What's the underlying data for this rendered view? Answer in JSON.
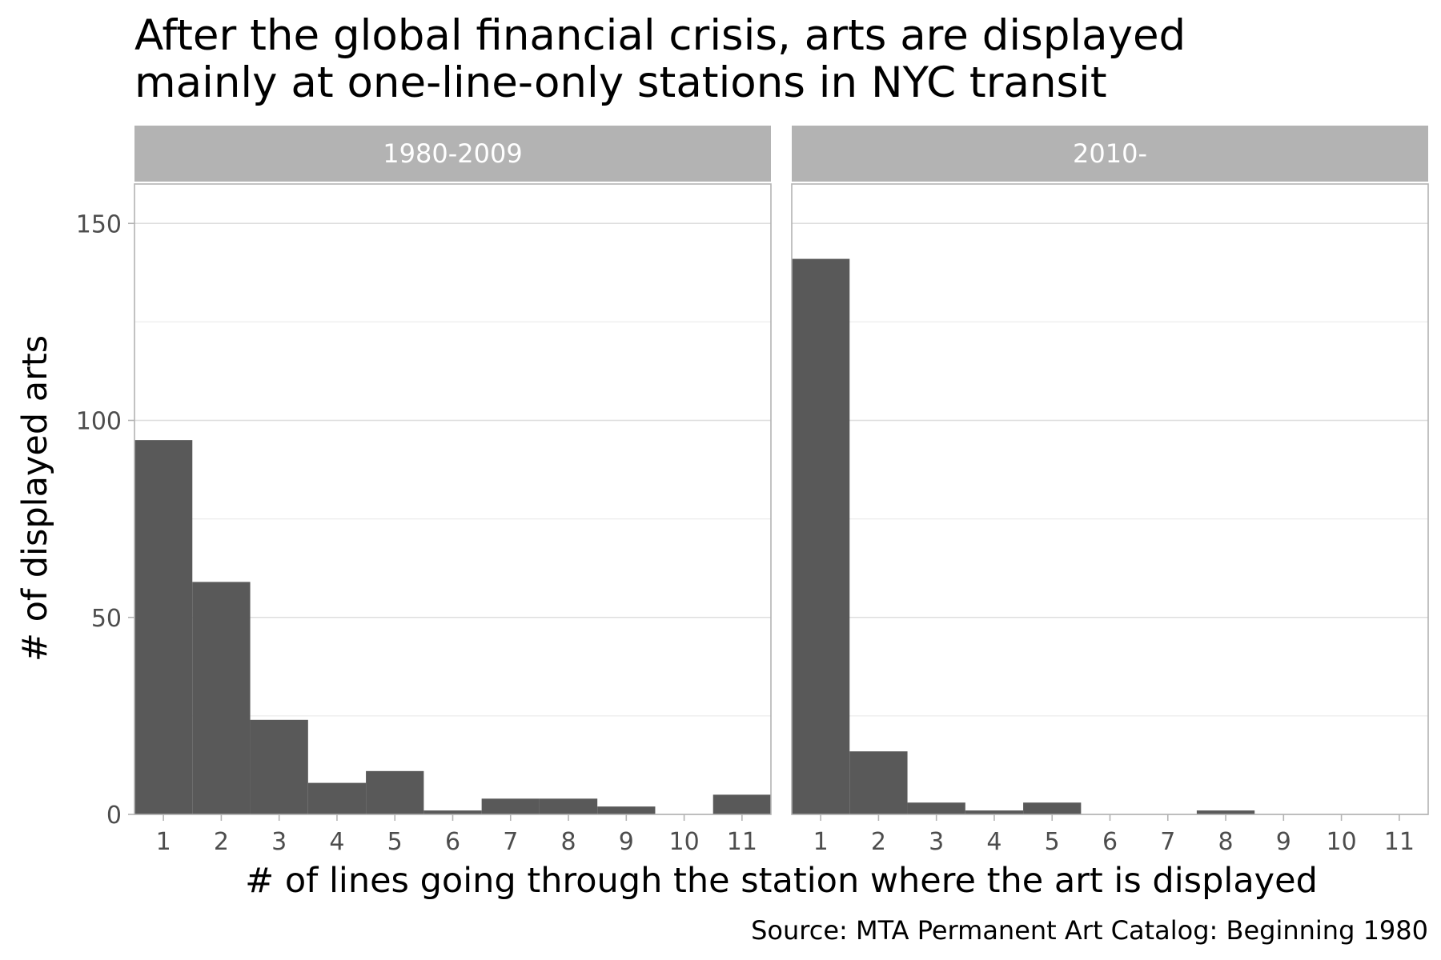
{
  "chart_data": {
    "type": "bar",
    "title_lines": [
      "After the global financial crisis, arts are displayed",
      "mainly at one-line-only stations in NYC transit"
    ],
    "xlabel": "# of lines going through the station where the art is displayed",
    "ylabel": "# of displayed arts",
    "caption": "Source: MTA Permanent Art Catalog: Beginning 1980",
    "categories": [
      "1",
      "2",
      "3",
      "4",
      "5",
      "6",
      "7",
      "8",
      "9",
      "10",
      "11"
    ],
    "ylim": [
      0,
      160
    ],
    "y_ticks": [
      0,
      50,
      100,
      150
    ],
    "grid": true,
    "panels": [
      {
        "name": "1980-2009",
        "values": [
          95,
          59,
          24,
          8,
          11,
          1,
          4,
          4,
          2,
          0,
          5
        ]
      },
      {
        "name": "2010-",
        "values": [
          141,
          16,
          3,
          1,
          3,
          0,
          0,
          1,
          0,
          0,
          0
        ]
      }
    ],
    "colors": {
      "bar": "#595959",
      "strip": "#b3b3b3",
      "grid_major": "#dedede",
      "grid_minor": "#ececec",
      "panel_border": "#b3b3b3"
    }
  }
}
